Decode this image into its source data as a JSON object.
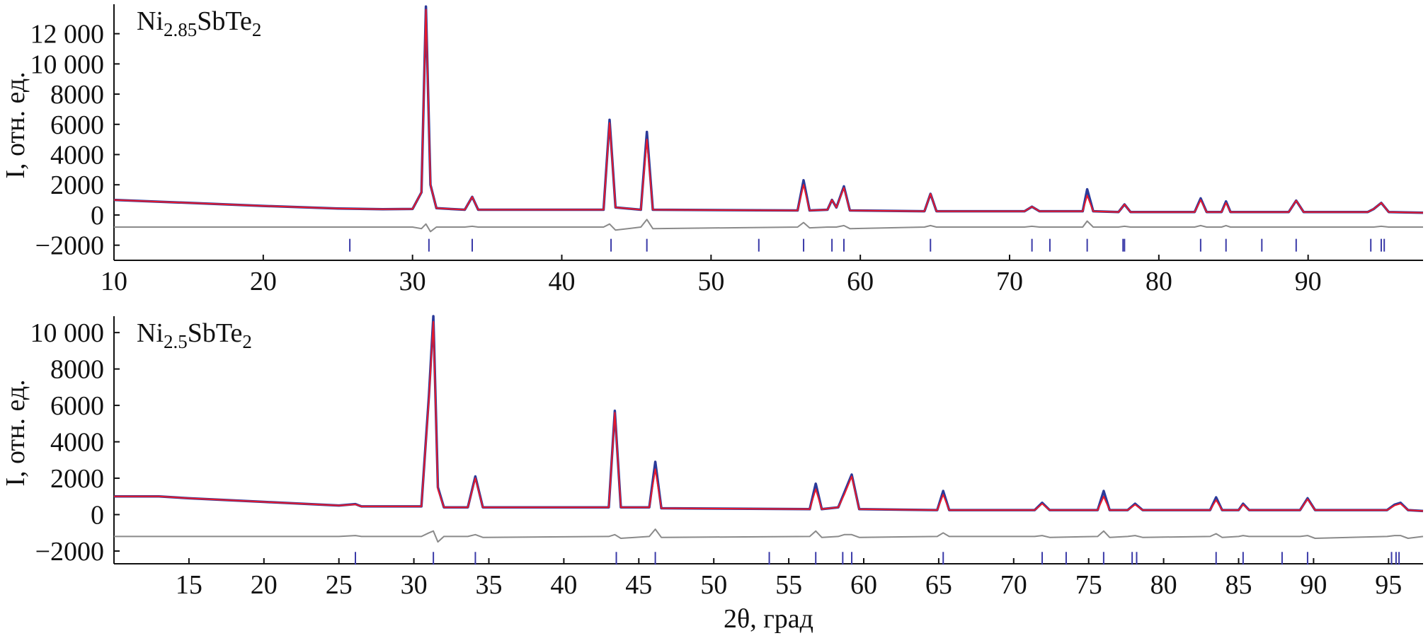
{
  "chart_data": [
    {
      "type": "line",
      "formula": [
        "Ni",
        "2.85",
        "SbTe",
        "2"
      ],
      "ylabel": "I, отн. ед.",
      "xlim": [
        10,
        97.7
      ],
      "ylim": [
        -3000,
        13950
      ],
      "xticks": [
        10,
        20,
        30,
        40,
        50,
        60,
        70,
        80,
        90
      ],
      "yticks": [
        {
          "value": -2000,
          "label": "−2000"
        },
        0,
        2000,
        4000,
        6000,
        8000,
        {
          "value": 10000,
          "label": "10 000"
        },
        {
          "value": 12000,
          "label": "12 000"
        }
      ],
      "x": [
        10,
        15,
        20,
        25,
        28,
        30,
        30.6,
        30.9,
        31.2,
        31.6,
        33.5,
        34.0,
        34.4,
        42.8,
        43.2,
        43.6,
        45.3,
        45.7,
        46.1,
        55.8,
        56.2,
        56.6,
        57.8,
        58.1,
        58.4,
        58.9,
        59.3,
        64.3,
        64.7,
        65.1,
        71.0,
        71.5,
        72.0,
        74.9,
        75.2,
        75.6,
        77.3,
        77.7,
        78.1,
        82.4,
        82.8,
        83.2,
        84.2,
        84.5,
        84.8,
        88.7,
        89.2,
        89.7,
        94.0,
        94.4,
        94.9,
        95.4,
        97.7
      ],
      "series": [
        {
          "color": "#2b3a9a",
          "style": "line",
          "values": [
            1000,
            800,
            600,
            430,
            380,
            400,
            1500,
            13800,
            2000,
            450,
            350,
            1200,
            350,
            350,
            6300,
            500,
            350,
            5500,
            350,
            300,
            2300,
            300,
            350,
            1000,
            500,
            1900,
            300,
            250,
            1400,
            250,
            250,
            550,
            250,
            250,
            1700,
            250,
            200,
            700,
            200,
            200,
            1100,
            200,
            200,
            900,
            200,
            200,
            950,
            200,
            200,
            400,
            800,
            200,
            150
          ]
        },
        {
          "color": "#e8192c",
          "style": "line",
          "values": [
            1000,
            800,
            600,
            430,
            380,
            400,
            1500,
            13600,
            2000,
            450,
            350,
            1200,
            350,
            350,
            6100,
            500,
            350,
            5000,
            350,
            300,
            2000,
            300,
            350,
            1000,
            500,
            1800,
            300,
            250,
            1400,
            250,
            250,
            550,
            250,
            250,
            1300,
            250,
            200,
            700,
            200,
            200,
            1000,
            200,
            200,
            800,
            200,
            200,
            950,
            200,
            200,
            400,
            800,
            200,
            150
          ]
        },
        {
          "color": "#8a8a8a",
          "style": "line",
          "values": [
            -800,
            -800,
            -800,
            -800,
            -800,
            -800,
            -900,
            -600,
            -1100,
            -800,
            -800,
            -750,
            -800,
            -800,
            -600,
            -1000,
            -800,
            -300,
            -900,
            -800,
            -500,
            -850,
            -800,
            -800,
            -800,
            -700,
            -900,
            -800,
            -700,
            -800,
            -800,
            -750,
            -800,
            -800,
            -400,
            -800,
            -800,
            -750,
            -800,
            -800,
            -700,
            -800,
            -800,
            -700,
            -800,
            -800,
            -800,
            -800,
            -800,
            -800,
            -750,
            -800,
            -800
          ]
        },
        {
          "color": "#3a3aa8",
          "style": "ticks",
          "x": [
            25.8,
            31.1,
            34.0,
            43.3,
            45.7,
            53.2,
            56.2,
            58.1,
            58.9,
            64.7,
            71.5,
            72.7,
            75.2,
            77.6,
            77.7,
            82.8,
            84.5,
            86.9,
            89.2,
            94.2,
            94.9,
            95.1
          ],
          "values": [
            -2000,
            -2000,
            -2000,
            -2000,
            -2000,
            -2000,
            -2000,
            -2000,
            -2000,
            -2000,
            -2000,
            -2000,
            -2000,
            -2000,
            -2000,
            -2000,
            -2000,
            -2000,
            -2000,
            -2000,
            -2000,
            -2000
          ]
        }
      ]
    },
    {
      "type": "line",
      "formula": [
        "Ni",
        "2.5",
        "SbTe",
        "2"
      ],
      "ylabel": "I, отн. ед.",
      "xlabel": "2θ, град",
      "xlim": [
        10,
        97.3
      ],
      "ylim": [
        -2700,
        10900
      ],
      "xticks": [
        15,
        20,
        25,
        30,
        35,
        40,
        45,
        50,
        55,
        60,
        65,
        70,
        75,
        80,
        85,
        90,
        95
      ],
      "yticks": [
        {
          "value": -2000,
          "label": "−2000"
        },
        0,
        2000,
        4000,
        6000,
        8000,
        {
          "value": 10000,
          "label": "10 000"
        }
      ],
      "x": [
        10,
        13,
        15,
        20,
        25,
        26.1,
        26.5,
        30.5,
        31.0,
        31.3,
        31.6,
        32.0,
        33.6,
        34.1,
        34.6,
        43.0,
        43.4,
        43.8,
        45.7,
        46.1,
        46.5,
        56.4,
        56.8,
        57.2,
        58.3,
        58.7,
        59.2,
        59.7,
        64.9,
        65.3,
        65.7,
        71.4,
        71.9,
        72.4,
        75.6,
        76.0,
        76.4,
        77.6,
        78.1,
        78.6,
        83.1,
        83.5,
        83.9,
        85.0,
        85.3,
        85.7,
        89.1,
        89.6,
        90.1,
        94.9,
        95.4,
        95.8,
        96.3,
        97.3
      ],
      "series": [
        {
          "color": "#2b3a9a",
          "style": "line",
          "values": [
            1000,
            1000,
            900,
            700,
            500,
            580,
            450,
            450,
            6500,
            10900,
            1500,
            400,
            400,
            2100,
            400,
            400,
            5700,
            400,
            400,
            2900,
            350,
            300,
            1700,
            300,
            400,
            1200,
            2200,
            300,
            250,
            1300,
            250,
            250,
            650,
            250,
            250,
            1300,
            250,
            250,
            600,
            250,
            250,
            950,
            250,
            250,
            600,
            250,
            250,
            900,
            250,
            250,
            550,
            650,
            250,
            200
          ]
        },
        {
          "color": "#e8192c",
          "style": "line",
          "values": [
            1000,
            1000,
            900,
            700,
            500,
            560,
            450,
            450,
            6300,
            10600,
            1400,
            400,
            400,
            2000,
            400,
            400,
            5600,
            400,
            400,
            2500,
            350,
            300,
            1400,
            300,
            400,
            1100,
            2100,
            300,
            250,
            1100,
            250,
            250,
            600,
            250,
            250,
            1000,
            250,
            250,
            550,
            250,
            250,
            800,
            250,
            250,
            550,
            250,
            250,
            850,
            250,
            250,
            500,
            600,
            250,
            200
          ]
        },
        {
          "color": "#8a8a8a",
          "style": "line",
          "values": [
            -1200,
            -1200,
            -1200,
            -1200,
            -1200,
            -1150,
            -1200,
            -1200,
            -1000,
            -900,
            -1500,
            -1200,
            -1200,
            -1100,
            -1250,
            -1200,
            -1100,
            -1300,
            -1200,
            -800,
            -1250,
            -1200,
            -900,
            -1250,
            -1200,
            -1100,
            -1100,
            -1250,
            -1200,
            -1000,
            -1200,
            -1200,
            -1150,
            -1250,
            -1200,
            -900,
            -1250,
            -1200,
            -1150,
            -1250,
            -1200,
            -1050,
            -1250,
            -1200,
            -1150,
            -1200,
            -1200,
            -1150,
            -1300,
            -1200,
            -1150,
            -1150,
            -1300,
            -1200
          ]
        },
        {
          "color": "#3a3aa8",
          "style": "ticks",
          "x": [
            26.1,
            31.3,
            34.1,
            43.5,
            46.1,
            53.7,
            56.8,
            58.6,
            59.2,
            65.3,
            71.9,
            73.5,
            76.0,
            77.9,
            78.2,
            83.5,
            85.3,
            87.9,
            89.6,
            95.2,
            95.5,
            95.7
          ],
          "values": [
            -2400,
            -2400,
            -2400,
            -2400,
            -2400,
            -2400,
            -2400,
            -2400,
            -2400,
            -2400,
            -2400,
            -2400,
            -2400,
            -2400,
            -2400,
            -2400,
            -2400,
            -2400,
            -2400,
            -2400,
            -2400,
            -2400
          ]
        }
      ]
    }
  ]
}
